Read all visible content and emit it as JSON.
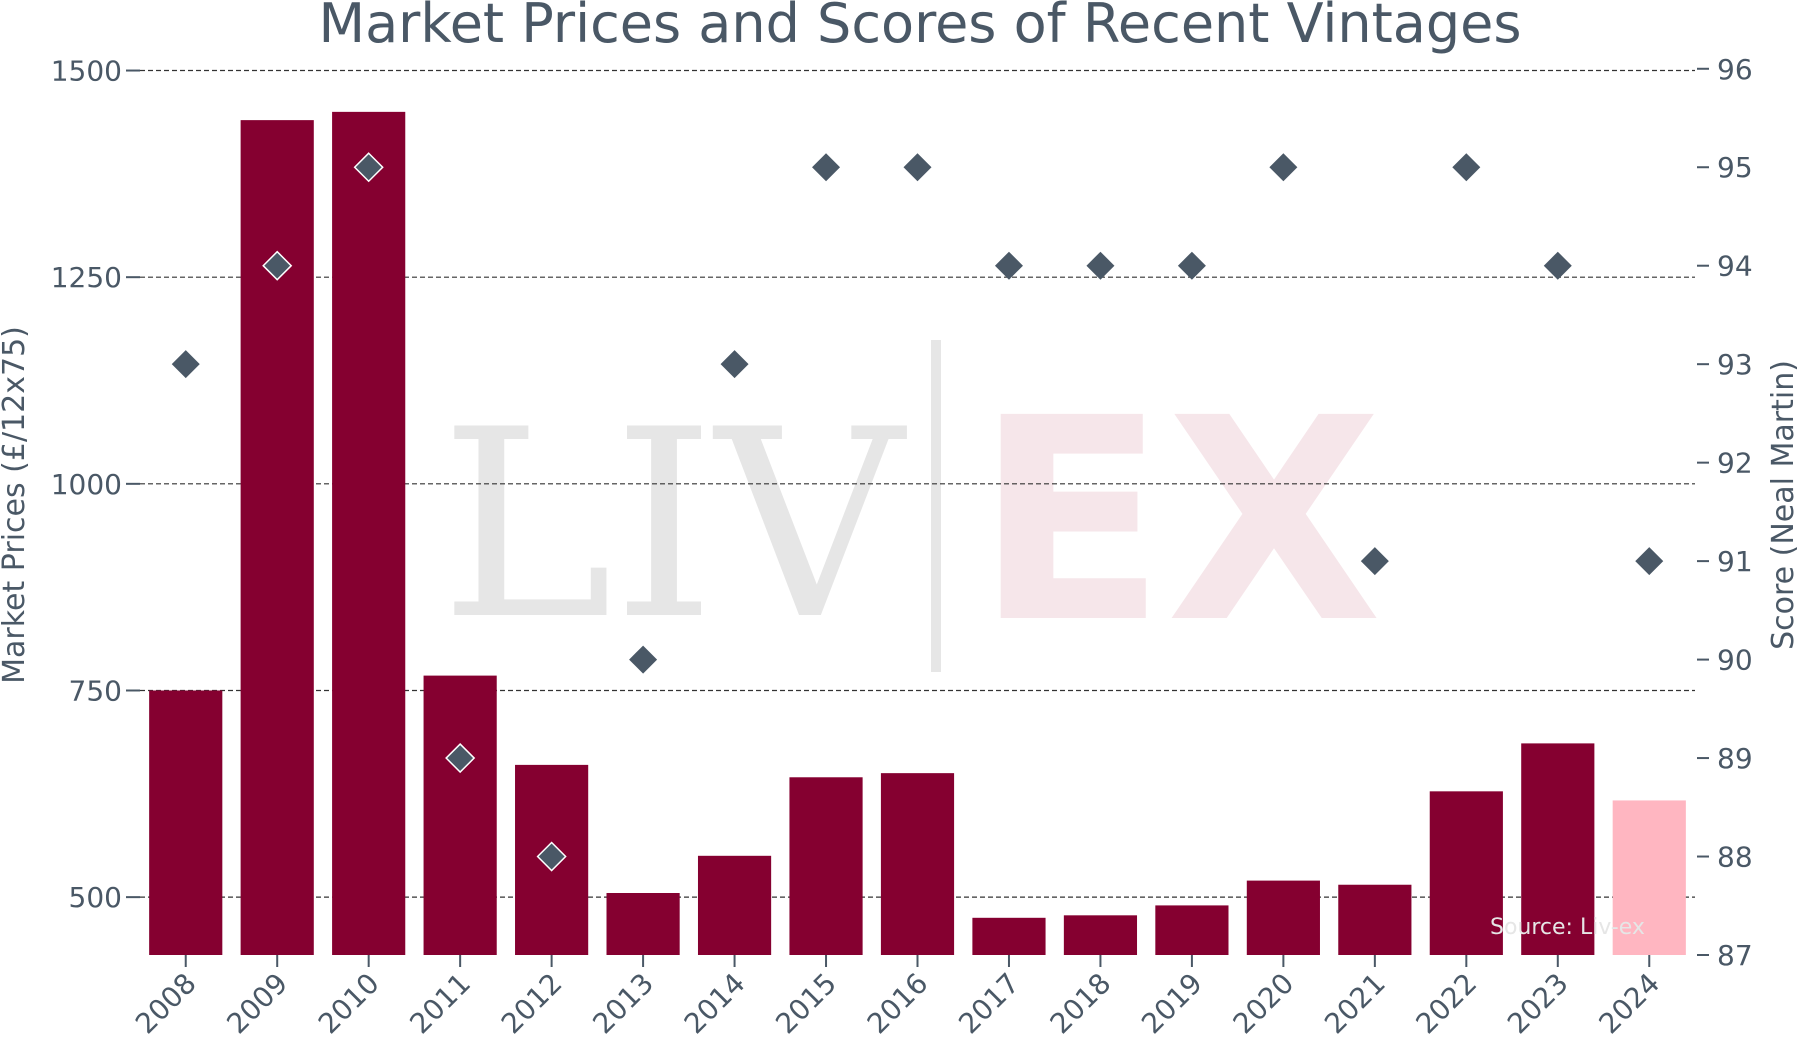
{
  "chart_data": {
    "type": "bar",
    "title": "Market Prices and Scores of Recent Vintages",
    "xlabel": "",
    "ylabel": "Market Prices (£/12x75)",
    "ylabel_right": "Score (Neal Martin)",
    "categories": [
      "2008",
      "2009",
      "2010",
      "2011",
      "2012",
      "2013",
      "2014",
      "2015",
      "2016",
      "2017",
      "2018",
      "2019",
      "2020",
      "2021",
      "2022",
      "2023",
      "2024"
    ],
    "series": [
      {
        "type": "bar",
        "axis": "left",
        "values": [
          750,
          1440,
          1450,
          768,
          660,
          505,
          550,
          645,
          650,
          475,
          478,
          490,
          520,
          515,
          628,
          686,
          617
        ],
        "colors": [
          "#850030",
          "#850030",
          "#850030",
          "#850030",
          "#850030",
          "#850030",
          "#850030",
          "#850030",
          "#850030",
          "#850030",
          "#850030",
          "#850030",
          "#850030",
          "#850030",
          "#850030",
          "#850030",
          "#ffb6c1"
        ]
      },
      {
        "type": "scatter",
        "axis": "right",
        "marker": "diamond",
        "color": "#4a5866",
        "values": [
          93,
          94,
          95,
          89,
          88,
          90,
          93,
          95,
          95,
          94,
          94,
          94,
          95,
          91,
          95,
          94,
          91
        ]
      }
    ],
    "ylim": [
      430,
      1520
    ],
    "yticks": [
      500,
      750,
      1000,
      1250,
      1500
    ],
    "ylim_right": [
      87,
      96.15
    ],
    "yticks_right": [
      87,
      88,
      89,
      90,
      91,
      92,
      93,
      94,
      95,
      96
    ],
    "grid": true,
    "watermark": {
      "left": "LIV",
      "right": "EX",
      "source": "Source: Liv-ex"
    }
  }
}
